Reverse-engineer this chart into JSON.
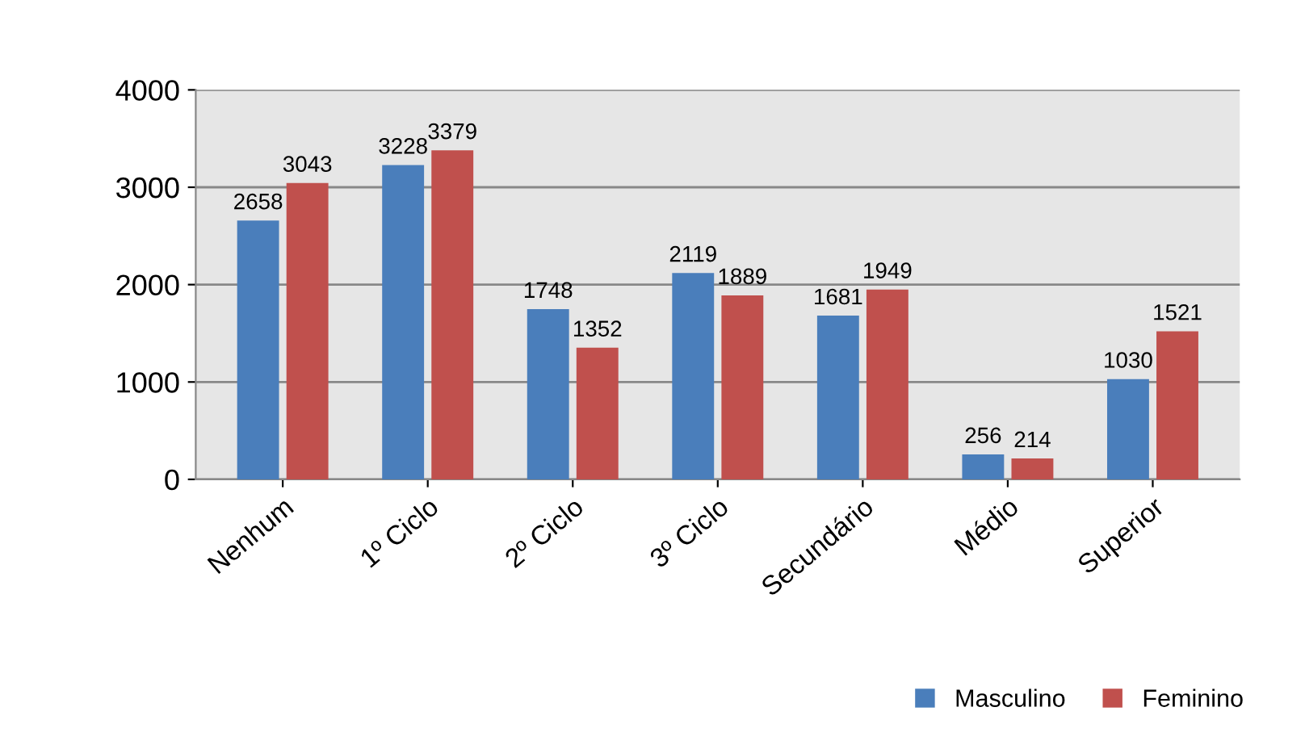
{
  "chart_data": {
    "type": "bar",
    "categories": [
      "Nenhum",
      "1º Ciclo",
      "2º Ciclo",
      "3º Ciclo",
      "Secundário",
      "Médio",
      "Superior"
    ],
    "series": [
      {
        "name": "Masculino",
        "color": "#4a7ebb",
        "values": [
          2658,
          3228,
          1748,
          2119,
          1681,
          256,
          1030
        ]
      },
      {
        "name": "Feminino",
        "color": "#c0504d",
        "values": [
          3043,
          3379,
          1352,
          1889,
          1949,
          214,
          1521
        ]
      }
    ],
    "ylim": [
      0,
      4000
    ],
    "yticks": [
      0,
      1000,
      2000,
      3000,
      4000
    ],
    "grid": "y",
    "legend": "bottom right",
    "data_labels": true
  }
}
